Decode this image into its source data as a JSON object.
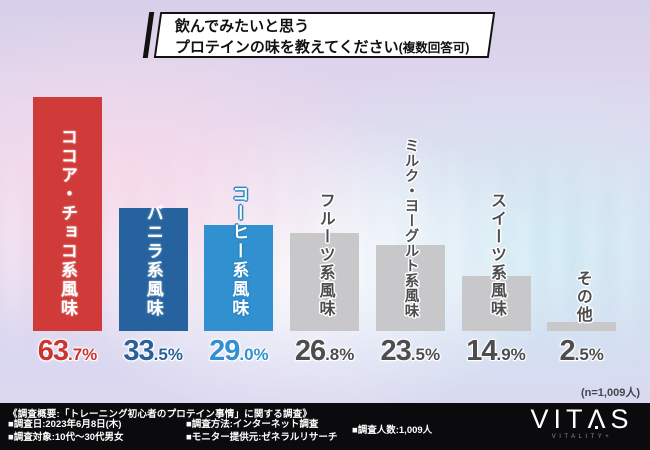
{
  "title": {
    "line1": "飲んでみたいと思う",
    "line2": "プロテインの味を教えてください",
    "line2_note": "(複数回答可)"
  },
  "chart_data": {
    "type": "bar",
    "orientation": "vertical-columns",
    "unit": "%",
    "ylim": [
      0,
      70
    ],
    "n_note": "(n=1,009人)",
    "categories": [
      "ココア・チョコ系風味",
      "バニラ系風味",
      "コーヒー系風味",
      "フルーツ系風味",
      "ミルク・ヨーグルト系風味",
      "スイーツ系風味",
      "その他"
    ],
    "values": [
      63.7,
      33.5,
      29.0,
      26.8,
      23.5,
      14.9,
      2.5
    ],
    "items": [
      {
        "label": "ココア・チョコ系風味",
        "value": 63.7,
        "pct_int": "63",
        "pct_frac": ".7%",
        "color": "#d03a38",
        "style": "red"
      },
      {
        "label": "バニラ系風味",
        "value": 33.5,
        "pct_int": "33",
        "pct_frac": ".5%",
        "color": "#26639e",
        "style": "navy"
      },
      {
        "label": "コーヒー系風味",
        "value": 29.0,
        "pct_int": "29",
        "pct_frac": ".0%",
        "color": "#3190d0",
        "style": "blue"
      },
      {
        "label": "フルーツ系風味",
        "value": 26.8,
        "pct_int": "26",
        "pct_frac": ".8%",
        "color": "#c8c7ca",
        "style": "gray"
      },
      {
        "label": "ミルク・ヨーグルト系風味",
        "value": 23.5,
        "pct_int": "23",
        "pct_frac": ".5%",
        "color": "#c8c7ca",
        "style": "gray"
      },
      {
        "label": "スイーツ系風味",
        "value": 14.9,
        "pct_int": "14",
        "pct_frac": ".9%",
        "color": "#c8c7ca",
        "style": "gray"
      },
      {
        "label": "その他",
        "value": 2.5,
        "pct_int": "2",
        "pct_frac": ".5%",
        "color": "#c8c7ca",
        "style": "gray"
      }
    ]
  },
  "footer": {
    "overview": "《調査概要:「トレーニング初心者のプロテイン事情」に関する調査》",
    "col1": [
      "■調査日:2023年6月8日(木)",
      "■調査対象:10代～30代男女"
    ],
    "col2": [
      "■調査方法:インターネット調査",
      "■モニター提供元:ゼネラルリサーチ"
    ],
    "col3": [
      "■調査人数:1,009人"
    ]
  },
  "logo": {
    "part1": "VIT",
    "lambda": "Λ",
    "part2": "S",
    "tagline": "VITALITY+"
  }
}
